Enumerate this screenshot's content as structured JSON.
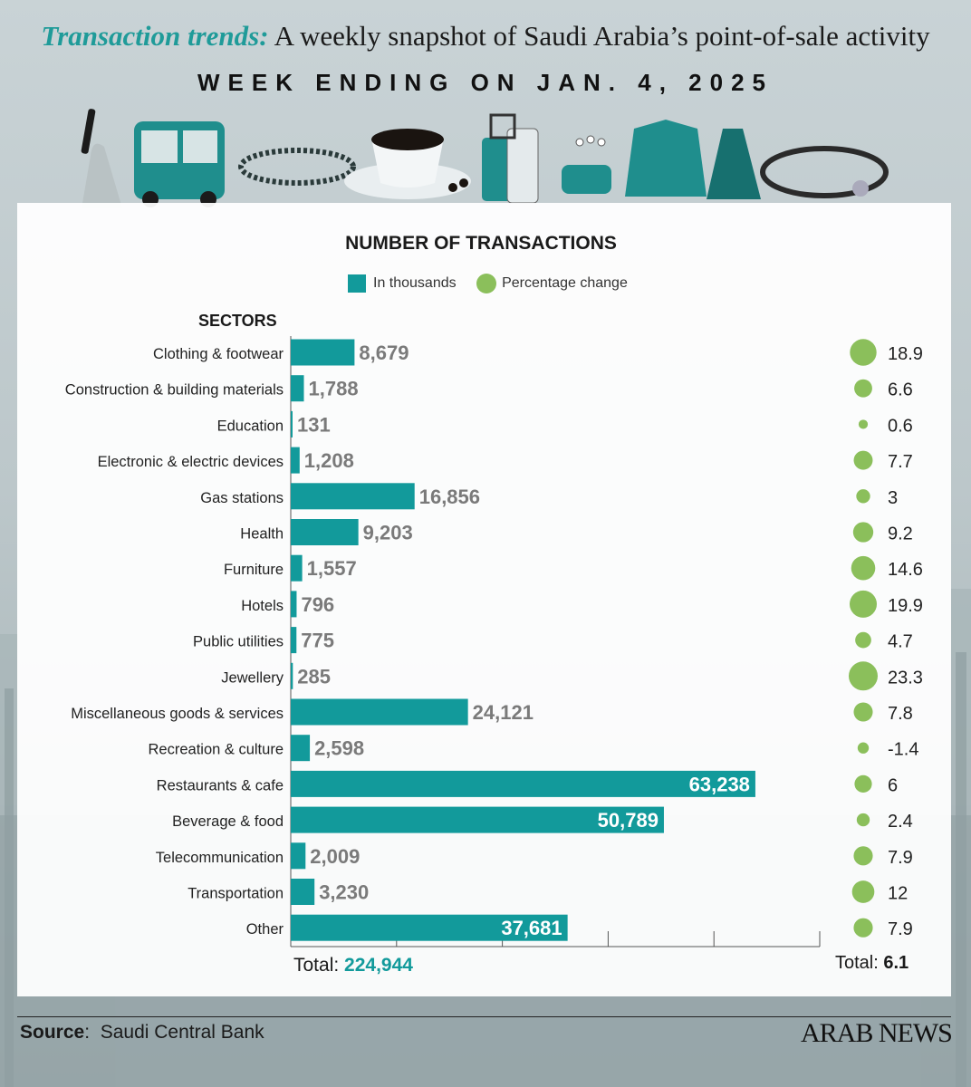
{
  "header": {
    "title_accent": "Transaction trends:",
    "title_rest": " A weekly snapshot of Saudi Arabia’s point-of-sale activity",
    "week": "WEEK ENDING ON JAN. 4, 2025"
  },
  "colors": {
    "bar": "#129a9b",
    "bubble": "#8bbf5b",
    "bar_label": "#7a7a7a"
  },
  "chart_data": {
    "type": "bar",
    "orientation": "horizontal",
    "title": "NUMBER OF TRANSACTIONS",
    "category_heading": "SECTORS",
    "legend": [
      "In thousands",
      "Percentage change"
    ],
    "categories": [
      "Clothing & footwear",
      "Construction & building materials",
      "Education",
      "Electronic & electric devices",
      "Gas stations",
      "Health",
      "Furniture",
      "Hotels",
      "Public utilities",
      "Jewellery",
      "Miscellaneous goods & services",
      "Recreation & culture",
      "Restaurants & cafe",
      "Beverage & food",
      "Telecommunication",
      "Transportation",
      "Other"
    ],
    "series": [
      {
        "name": "In thousands",
        "values": [
          8679,
          1788,
          131,
          1208,
          16856,
          9203,
          1557,
          796,
          775,
          285,
          24121,
          2598,
          63238,
          50789,
          2009,
          3230,
          37681
        ]
      },
      {
        "name": "Percentage change",
        "values": [
          18.9,
          6.6,
          0.6,
          7.7,
          3,
          9.2,
          14.6,
          19.9,
          4.7,
          23.3,
          7.8,
          -1.4,
          6,
          2.4,
          7.9,
          12,
          7.9
        ]
      }
    ],
    "value_labels": [
      "8,679",
      "1,788",
      "131",
      "1,208",
      "16,856",
      "9,203",
      "1,557",
      "796",
      "775",
      "285",
      "24,121",
      "2,598",
      "63,238",
      "50,789",
      "2,009",
      "3,230",
      "37,681"
    ],
    "pct_labels": [
      "18.9",
      "6.6",
      "0.6",
      "7.7",
      "3",
      "9.2",
      "14.6",
      "19.9",
      "4.7",
      "23.3",
      "7.8",
      "-1.4",
      "6",
      "2.4",
      "7.9",
      "12",
      "7.9"
    ],
    "xlim": [
      0,
      72000
    ],
    "total_label": "Total:",
    "total_value": "224,944",
    "total_pct_label": "Total:",
    "total_pct_value": "6.1"
  },
  "footer": {
    "source_label": "Source",
    "source_value": "Saudi Central Bank",
    "brand": "ARAB NEWS"
  },
  "icons": [
    "phone-in-hand-icon",
    "bus-icon",
    "bracelet-icon",
    "coffee-cup-icon",
    "luggage-icon",
    "sandals-icon",
    "cardigan-icon",
    "dress-icon",
    "stethoscope-icon"
  ]
}
